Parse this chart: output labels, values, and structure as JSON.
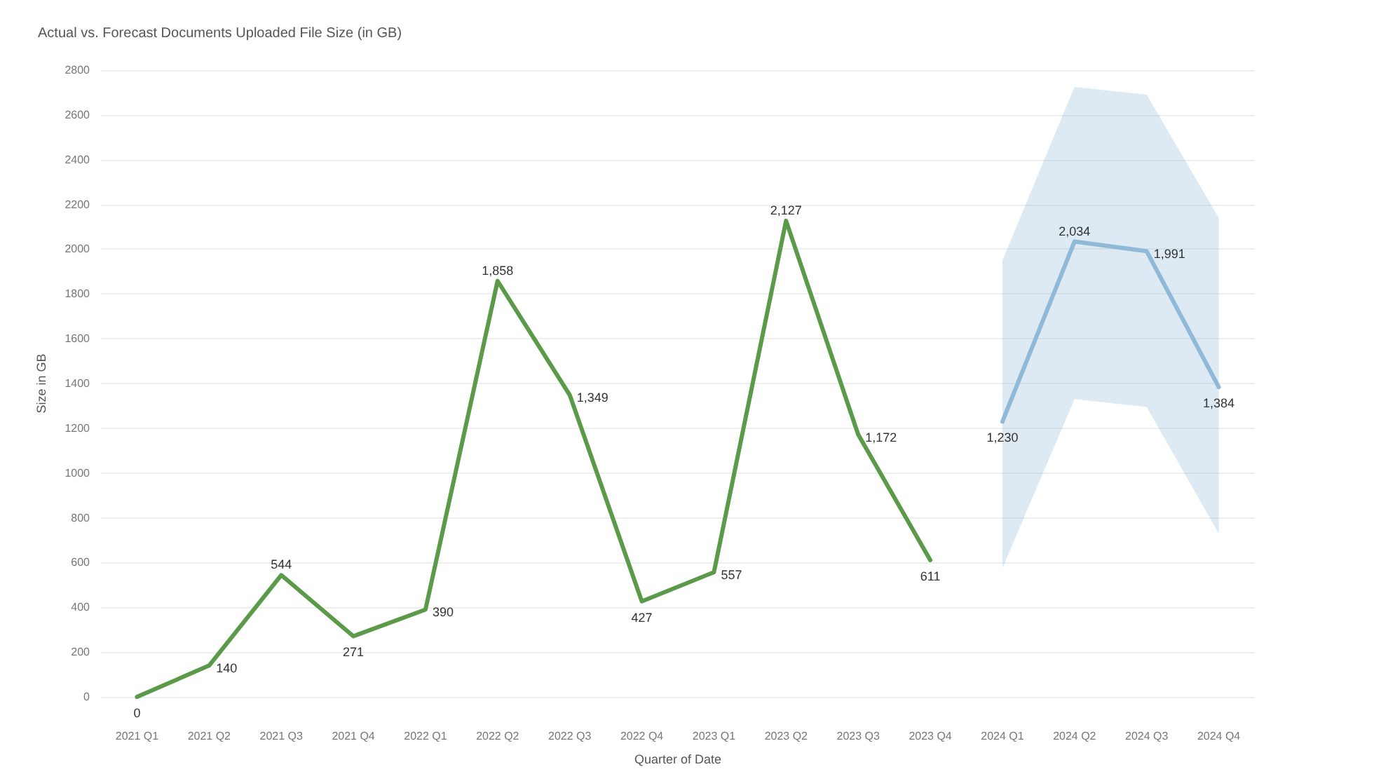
{
  "chart_data": {
    "type": "line",
    "title": "Actual vs. Forecast Documents Uploaded File Size (in GB)",
    "xlabel": "Quarter of Date",
    "ylabel": "Size in GB",
    "categories": [
      "2021 Q1",
      "2021 Q2",
      "2021 Q3",
      "2021 Q4",
      "2022 Q1",
      "2022 Q2",
      "2022 Q3",
      "2022 Q4",
      "2023 Q1",
      "2023 Q2",
      "2023 Q3",
      "2023 Q4",
      "2024 Q1",
      "2024 Q2",
      "2024 Q3",
      "2024 Q4"
    ],
    "series": [
      {
        "color": "#5a9a48",
        "values": [
          0,
          140,
          544,
          271,
          390,
          1858,
          1349,
          427,
          557,
          2127,
          1172,
          611,
          null,
          null,
          null,
          null
        ],
        "value_labels": [
          "0",
          "140",
          "544",
          "271",
          "390",
          "1,858",
          "1,349",
          "427",
          "557",
          "2,127",
          "1,172",
          "611",
          null,
          null,
          null,
          null
        ]
      },
      {
        "color": "#8fb9d6",
        "values": [
          null,
          null,
          null,
          null,
          null,
          null,
          null,
          null,
          null,
          null,
          null,
          null,
          1230,
          2034,
          1991,
          1384
        ],
        "value_labels": [
          null,
          null,
          null,
          null,
          null,
          null,
          null,
          null,
          null,
          null,
          null,
          null,
          "1,230",
          "2,034",
          "1,991",
          "1,384"
        ],
        "lower": [
          null,
          null,
          null,
          null,
          null,
          null,
          null,
          null,
          null,
          null,
          null,
          null,
          575,
          1330,
          1295,
          730
        ],
        "upper": [
          null,
          null,
          null,
          null,
          null,
          null,
          null,
          null,
          null,
          null,
          null,
          null,
          1950,
          2725,
          2690,
          2140
        ]
      }
    ],
    "ylim": [
      0,
      2800
    ],
    "yticks": [
      0,
      200,
      400,
      600,
      800,
      1000,
      1200,
      1400,
      1600,
      1800,
      2000,
      2200,
      2400,
      2600,
      2800
    ],
    "grid": "y",
    "marker": "none",
    "line_style": "solid"
  }
}
